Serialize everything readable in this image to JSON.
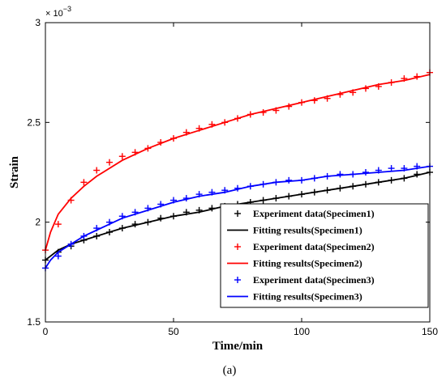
{
  "chart_data": {
    "type": "line",
    "title": "",
    "xlabel": "Time/min",
    "ylabel": "Strain",
    "y_exponent_label": "× 10",
    "y_exponent_power": "−3",
    "xlim": [
      0,
      150
    ],
    "ylim": [
      1.5,
      3.0
    ],
    "x_ticks": [
      "0",
      "50",
      "100",
      "150"
    ],
    "y_ticks": [
      "1.5",
      "2",
      "2.5",
      "3"
    ],
    "caption": "(a)",
    "legend_position": "lower-right",
    "grid": false,
    "series": [
      {
        "name": "Experiment data(Specimen1)",
        "kind": "marker",
        "marker": "+",
        "color": "#000000",
        "x": [
          0,
          5,
          10,
          15,
          20,
          25,
          30,
          35,
          40,
          45,
          50,
          55,
          60,
          65,
          70,
          75,
          80,
          85,
          90,
          95,
          100,
          105,
          110,
          115,
          120,
          125,
          130,
          135,
          140,
          145,
          150
        ],
        "y": [
          1.81,
          1.85,
          1.88,
          1.91,
          1.93,
          1.95,
          1.97,
          1.99,
          2.0,
          2.02,
          2.03,
          2.05,
          2.06,
          2.07,
          2.08,
          2.09,
          2.1,
          2.11,
          2.12,
          2.13,
          2.14,
          2.15,
          2.16,
          2.17,
          2.18,
          2.19,
          2.2,
          2.21,
          2.22,
          2.24,
          2.25
        ]
      },
      {
        "name": "Fitting results(Specimen1)",
        "kind": "line",
        "color": "#000000",
        "x": [
          0,
          2,
          5,
          10,
          15,
          20,
          30,
          40,
          50,
          60,
          70,
          80,
          90,
          100,
          110,
          120,
          130,
          140,
          150
        ],
        "y": [
          1.81,
          1.83,
          1.86,
          1.89,
          1.91,
          1.93,
          1.97,
          2.0,
          2.03,
          2.05,
          2.08,
          2.1,
          2.12,
          2.14,
          2.16,
          2.18,
          2.2,
          2.22,
          2.25
        ]
      },
      {
        "name": "Experiment data(Specimen2)",
        "kind": "marker",
        "marker": "+",
        "color": "#ff0000",
        "x": [
          0,
          5,
          10,
          15,
          20,
          25,
          30,
          35,
          40,
          45,
          50,
          55,
          60,
          65,
          70,
          75,
          80,
          85,
          90,
          95,
          100,
          105,
          110,
          115,
          120,
          125,
          130,
          135,
          140,
          145,
          150
        ],
        "y": [
          1.86,
          1.99,
          2.11,
          2.2,
          2.26,
          2.3,
          2.33,
          2.35,
          2.37,
          2.4,
          2.42,
          2.45,
          2.47,
          2.49,
          2.5,
          2.52,
          2.54,
          2.55,
          2.56,
          2.58,
          2.6,
          2.61,
          2.62,
          2.64,
          2.65,
          2.67,
          2.68,
          2.7,
          2.72,
          2.73,
          2.75
        ]
      },
      {
        "name": "Fitting results(Specimen2)",
        "kind": "line",
        "color": "#ff0000",
        "x": [
          0,
          2,
          5,
          10,
          15,
          20,
          30,
          40,
          50,
          60,
          70,
          80,
          90,
          100,
          110,
          120,
          130,
          140,
          150
        ],
        "y": [
          1.86,
          1.95,
          2.04,
          2.12,
          2.18,
          2.23,
          2.31,
          2.37,
          2.42,
          2.46,
          2.5,
          2.54,
          2.57,
          2.6,
          2.63,
          2.66,
          2.69,
          2.71,
          2.74
        ]
      },
      {
        "name": "Experiment data(Specimen3)",
        "kind": "marker",
        "marker": "+",
        "color": "#0000ff",
        "x": [
          0,
          5,
          10,
          15,
          20,
          25,
          30,
          35,
          40,
          45,
          50,
          55,
          60,
          65,
          70,
          75,
          80,
          85,
          90,
          95,
          100,
          105,
          110,
          115,
          120,
          125,
          130,
          135,
          140,
          145,
          150
        ],
        "y": [
          1.77,
          1.83,
          1.89,
          1.93,
          1.97,
          2.0,
          2.03,
          2.05,
          2.07,
          2.09,
          2.11,
          2.12,
          2.14,
          2.15,
          2.16,
          2.17,
          2.18,
          2.19,
          2.2,
          2.21,
          2.21,
          2.22,
          2.23,
          2.24,
          2.24,
          2.25,
          2.26,
          2.27,
          2.27,
          2.28,
          2.28
        ]
      },
      {
        "name": "Fitting results(Specimen3)",
        "kind": "line",
        "color": "#0000ff",
        "x": [
          0,
          2,
          5,
          10,
          15,
          20,
          30,
          40,
          50,
          60,
          70,
          80,
          90,
          100,
          110,
          120,
          130,
          140,
          150
        ],
        "y": [
          1.77,
          1.81,
          1.85,
          1.89,
          1.93,
          1.96,
          2.02,
          2.06,
          2.1,
          2.13,
          2.15,
          2.18,
          2.2,
          2.21,
          2.23,
          2.24,
          2.25,
          2.26,
          2.28
        ]
      }
    ]
  }
}
